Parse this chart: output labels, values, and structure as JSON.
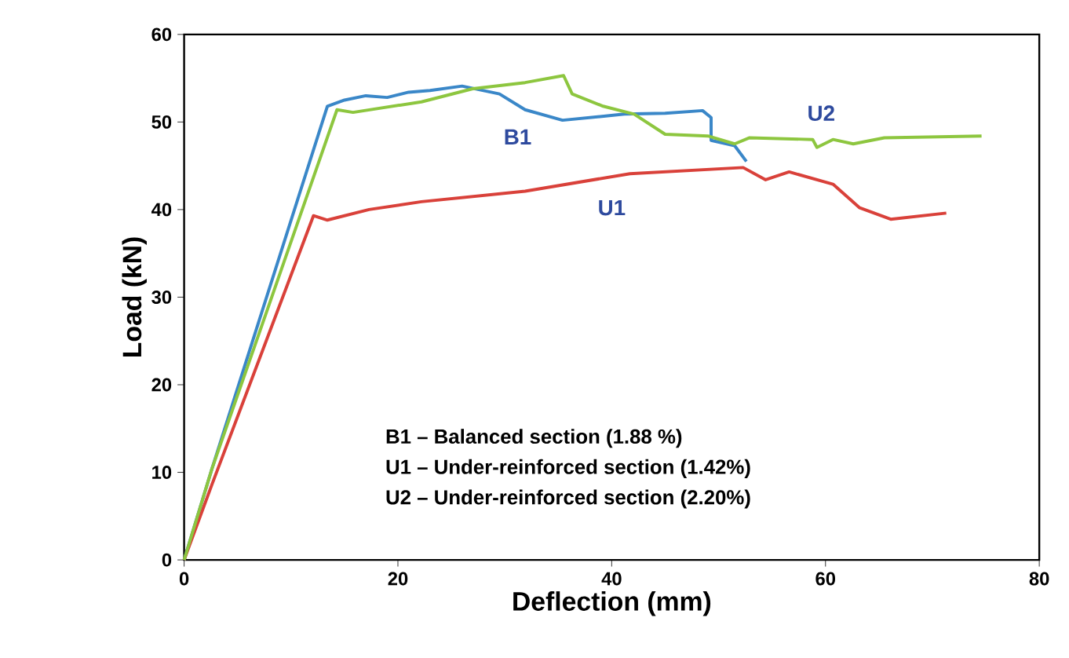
{
  "chart_data": {
    "type": "line",
    "xlabel": "Deflection (mm)",
    "ylabel": "Load (kN)",
    "xlim": [
      0,
      80
    ],
    "ylim": [
      0,
      60
    ],
    "xticks": [
      0,
      20,
      40,
      60,
      80
    ],
    "yticks": [
      0,
      10,
      20,
      30,
      40,
      50,
      60
    ],
    "grid": false,
    "marker": "none",
    "line_style": "solid",
    "series": [
      {
        "name": "B1",
        "color": "#3a87c8",
        "x": [
          0,
          2.6,
          13.4,
          15,
          17,
          19,
          21,
          23,
          26,
          29.5,
          31.9,
          35.4,
          41.2,
          45,
          48.5,
          49.3,
          49.3,
          51.5,
          52.6
        ],
        "values": [
          0,
          10.4,
          51.8,
          52.5,
          53,
          52.8,
          53.4,
          53.6,
          54.1,
          53.2,
          51.4,
          50.2,
          50.9,
          51,
          51.3,
          50.5,
          47.9,
          47.3,
          45.5
        ]
      },
      {
        "name": "U1",
        "color": "#d9413a",
        "x": [
          0,
          2.6,
          12.1,
          13.4,
          17.3,
          22.2,
          31.9,
          41.7,
          52.3,
          54.4,
          56.6,
          60.7,
          63.2,
          66.1,
          71.3
        ],
        "values": [
          0,
          8.6,
          39.3,
          38.8,
          40,
          40.9,
          42.1,
          44.1,
          44.8,
          43.4,
          44.3,
          42.9,
          40.2,
          38.9,
          39.6
        ]
      },
      {
        "name": "U2",
        "color": "#8dc63f",
        "x": [
          0,
          2.6,
          14.3,
          15.8,
          22.2,
          27,
          31.9,
          35.5,
          36.3,
          39.2,
          42.1,
          45,
          49,
          51.5,
          52.9,
          58.8,
          59.2,
          60.7,
          62.6,
          65.5,
          74.6
        ],
        "values": [
          0,
          10.4,
          51.4,
          51.1,
          52.3,
          53.8,
          54.5,
          55.3,
          53.2,
          51.8,
          50.9,
          48.6,
          48.4,
          47.5,
          48.2,
          48,
          47.1,
          48,
          47.5,
          48.2,
          48.4
        ]
      }
    ],
    "annotations": [
      "B1 – Balanced section (1.88 %)",
      "U1 – Under-reinforced section (1.42%)",
      "U2 – Under-reinforced section (2.20%)"
    ]
  }
}
